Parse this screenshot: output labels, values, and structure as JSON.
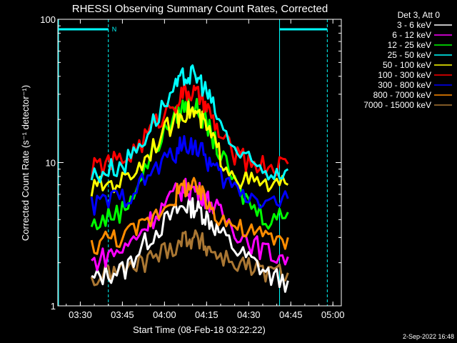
{
  "chart_data": {
    "type": "line",
    "title": "RHESSI Observing Summary Count Rates, Corrected",
    "xlabel": "Start Time (08-Feb-18 03:22:22)",
    "ylabel": "Corrected Count Rate (s⁻¹ detector⁻¹)",
    "yscale": "log",
    "ylim": [
      1,
      100
    ],
    "xlim": [
      "03:22",
      "05:03"
    ],
    "x_ticks": [
      "03:30",
      "03:45",
      "04:00",
      "04:15",
      "04:30",
      "04:45",
      "05:00"
    ],
    "y_ticks": [
      "1",
      "10",
      "100"
    ],
    "legend_title": "Det 3, Att 0",
    "legend_position": "right",
    "footer_date": "2-Sep-2022 16:48",
    "x": [
      "03:34",
      "03:40",
      "03:46",
      "03:52",
      "03:58",
      "04:04",
      "04:07",
      "04:10",
      "04:13",
      "04:16",
      "04:20",
      "04:26",
      "04:32",
      "04:38",
      "04:44"
    ],
    "series": [
      {
        "name": "3 - 6 keV",
        "color": "#ffffff",
        "values": [
          1.5,
          1.7,
          1.8,
          2.6,
          3.5,
          4.5,
          5.0,
          5.0,
          4.6,
          4.0,
          3.2,
          2.4,
          2.0,
          1.6,
          1.5
        ]
      },
      {
        "name": "6 - 12 keV",
        "color": "#ff00ff",
        "values": [
          2.0,
          2.3,
          2.5,
          3.4,
          4.6,
          6.2,
          6.6,
          6.6,
          6.2,
          5.4,
          4.4,
          3.3,
          2.7,
          2.3,
          2.2
        ]
      },
      {
        "name": "12 - 25 keV",
        "color": "#00ff00",
        "values": [
          3.6,
          4.2,
          4.8,
          8.0,
          14.0,
          21.0,
          25.0,
          25.5,
          22.0,
          17.0,
          11.0,
          6.5,
          4.8,
          4.0,
          4.5
        ]
      },
      {
        "name": "25 - 50 keV",
        "color": "#00ffff",
        "values": [
          8.0,
          9.0,
          10.0,
          14.0,
          22.0,
          33.0,
          40.0,
          41.0,
          37.0,
          28.0,
          18.0,
          11.5,
          9.5,
          8.5,
          9.0
        ]
      },
      {
        "name": "50 - 100 keV",
        "color": "#ffff00",
        "values": [
          6.5,
          7.2,
          7.6,
          10.0,
          15.0,
          20.0,
          23.0,
          23.0,
          20.0,
          16.0,
          11.0,
          8.0,
          7.2,
          6.8,
          7.0
        ]
      },
      {
        "name": "100 - 300 keV",
        "color": "#ff0000",
        "values": [
          9.0,
          10.0,
          10.5,
          14.0,
          20.0,
          27.0,
          31.0,
          31.0,
          28.0,
          22.0,
          15.0,
          11.0,
          10.0,
          9.5,
          9.8
        ]
      },
      {
        "name": "300 - 800 keV",
        "color": "#0000ff",
        "values": [
          5.0,
          5.5,
          5.8,
          7.2,
          9.5,
          12.0,
          13.5,
          13.5,
          12.0,
          10.0,
          8.0,
          6.4,
          5.8,
          5.4,
          5.6
        ]
      },
      {
        "name": "800 - 7000 keV",
        "color": "#ff8c00",
        "values": [
          2.6,
          3.0,
          3.1,
          3.6,
          4.6,
          6.0,
          6.8,
          6.8,
          6.0,
          5.0,
          4.2,
          3.5,
          3.2,
          3.0,
          3.0
        ]
      },
      {
        "name": "7000 - 15000 keV",
        "color": "#aa7733",
        "values": [
          1.5,
          1.7,
          1.8,
          2.0,
          2.3,
          2.7,
          3.0,
          3.0,
          2.8,
          2.5,
          2.2,
          2.0,
          1.8,
          1.7,
          1.7
        ]
      }
    ],
    "annotations": [
      "N"
    ],
    "boxes": {
      "line_color": "#00ffff"
    }
  }
}
